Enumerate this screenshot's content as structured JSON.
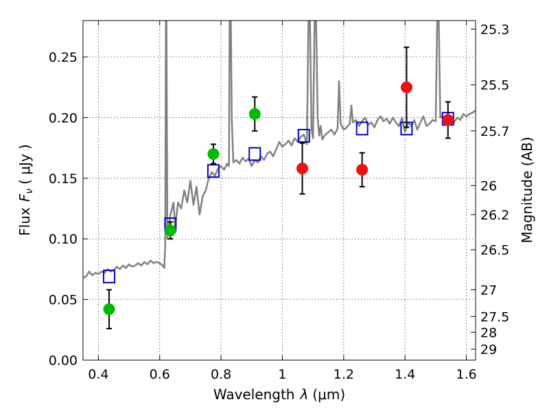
{
  "chart_data": {
    "type": "scatter",
    "xlabel": "Wavelength",
    "xlabel_symbol": "λ",
    "xlabel_unit": "(μm)",
    "ylabel": "Flux",
    "ylabel_symbol": "F",
    "ylabel_subscript": "ν",
    "ylabel_unit": "( μJy )",
    "y2label": "Magnitude (AB)",
    "xlim": [
      0.35,
      1.63
    ],
    "ylim": [
      0.0,
      0.28
    ],
    "grid": true,
    "xticks": [
      0.4,
      0.6,
      0.8,
      1.0,
      1.2,
      1.4,
      1.6
    ],
    "xtick_labels": [
      "0.4",
      "0.6",
      "0.8",
      "1",
      "1.2",
      "1.4",
      "1.6"
    ],
    "yticks": [
      0.0,
      0.05,
      0.1,
      0.15,
      0.2,
      0.25
    ],
    "ytick_labels": [
      "0.00",
      "0.05",
      "0.10",
      "0.15",
      "0.20",
      "0.25"
    ],
    "y2ticks": [
      {
        "label": "25.3",
        "flux": 0.273
      },
      {
        "label": "25.5",
        "flux": 0.227
      },
      {
        "label": "25.7",
        "flux": 0.189
      },
      {
        "label": "26",
        "flux": 0.144
      },
      {
        "label": "26.2",
        "flux": 0.12
      },
      {
        "label": "26.5",
        "flux": 0.091
      },
      {
        "label": "27",
        "flux": 0.058
      },
      {
        "label": "27.5",
        "flux": 0.036
      },
      {
        "label": "28",
        "flux": 0.023
      },
      {
        "label": "29",
        "flux": 0.009
      }
    ],
    "colors": {
      "spectrum": "#808080",
      "green_points": "#00bb00",
      "red_points": "#ee1111",
      "model_points": "#0000cc",
      "errorbar": "#000000"
    },
    "series": [
      {
        "marker": "line",
        "color": "#808080",
        "x": [
          0.35,
          0.36,
          0.37,
          0.38,
          0.39,
          0.4,
          0.41,
          0.42,
          0.43,
          0.44,
          0.45,
          0.46,
          0.47,
          0.48,
          0.49,
          0.5,
          0.51,
          0.52,
          0.53,
          0.54,
          0.55,
          0.56,
          0.57,
          0.58,
          0.59,
          0.6,
          0.61,
          0.615,
          0.618,
          0.62,
          0.622,
          0.625,
          0.63,
          0.635,
          0.64,
          0.645,
          0.65,
          0.66,
          0.67,
          0.68,
          0.69,
          0.7,
          0.71,
          0.72,
          0.73,
          0.74,
          0.75,
          0.76,
          0.77,
          0.78,
          0.79,
          0.8,
          0.81,
          0.82,
          0.826,
          0.828,
          0.832,
          0.835,
          0.84,
          0.85,
          0.86,
          0.87,
          0.88,
          0.89,
          0.9,
          0.91,
          0.92,
          0.93,
          0.94,
          0.95,
          0.96,
          0.97,
          0.98,
          0.99,
          1.0,
          1.01,
          1.02,
          1.03,
          1.04,
          1.05,
          1.06,
          1.07,
          1.08,
          1.085,
          1.09,
          1.095,
          1.1,
          1.105,
          1.11,
          1.115,
          1.12,
          1.125,
          1.13,
          1.14,
          1.15,
          1.16,
          1.17,
          1.18,
          1.185,
          1.19,
          1.2,
          1.21,
          1.22,
          1.225,
          1.23,
          1.24,
          1.25,
          1.26,
          1.27,
          1.28,
          1.29,
          1.3,
          1.31,
          1.32,
          1.33,
          1.34,
          1.35,
          1.36,
          1.37,
          1.38,
          1.39,
          1.4,
          1.41,
          1.42,
          1.43,
          1.44,
          1.45,
          1.46,
          1.47,
          1.48,
          1.49,
          1.5,
          1.505,
          1.51,
          1.515,
          1.52,
          1.53,
          1.54,
          1.55,
          1.56,
          1.57,
          1.58,
          1.59,
          1.6,
          1.61,
          1.62,
          1.63
        ],
        "y": [
          0.068,
          0.069,
          0.073,
          0.07,
          0.072,
          0.071,
          0.073,
          0.072,
          0.075,
          0.073,
          0.074,
          0.077,
          0.075,
          0.078,
          0.076,
          0.079,
          0.077,
          0.078,
          0.08,
          0.078,
          0.081,
          0.079,
          0.082,
          0.08,
          0.081,
          0.08,
          0.078,
          0.076,
          0.095,
          0.28,
          0.28,
          0.1,
          0.11,
          0.12,
          0.125,
          0.13,
          0.11,
          0.13,
          0.125,
          0.14,
          0.13,
          0.148,
          0.128,
          0.143,
          0.12,
          0.135,
          0.14,
          0.15,
          0.155,
          0.152,
          0.158,
          0.16,
          0.157,
          0.162,
          0.16,
          0.28,
          0.28,
          0.2,
          0.163,
          0.165,
          0.162,
          0.167,
          0.164,
          0.166,
          0.16,
          0.165,
          0.163,
          0.168,
          0.165,
          0.17,
          0.172,
          0.168,
          0.174,
          0.18,
          0.176,
          0.178,
          0.181,
          0.177,
          0.183,
          0.18,
          0.184,
          0.186,
          0.178,
          0.28,
          0.28,
          0.19,
          0.183,
          0.28,
          0.28,
          0.2,
          0.185,
          0.193,
          0.182,
          0.186,
          0.188,
          0.19,
          0.186,
          0.191,
          0.23,
          0.195,
          0.19,
          0.192,
          0.195,
          0.21,
          0.196,
          0.198,
          0.193,
          0.197,
          0.2,
          0.194,
          0.196,
          0.192,
          0.198,
          0.201,
          0.197,
          0.199,
          0.195,
          0.2,
          0.196,
          0.193,
          0.2,
          0.188,
          0.196,
          0.193,
          0.198,
          0.19,
          0.196,
          0.201,
          0.193,
          0.195,
          0.198,
          0.197,
          0.28,
          0.28,
          0.2,
          0.201,
          0.199,
          0.197,
          0.201,
          0.196,
          0.2,
          0.198,
          0.203,
          0.201,
          0.203,
          0.204,
          0.206
        ]
      },
      {
        "marker": "square",
        "color": "#0000cc",
        "x": [
          0.435,
          0.635,
          0.775,
          0.91,
          1.07,
          1.26,
          1.405,
          1.54
        ],
        "y": [
          0.069,
          0.112,
          0.156,
          0.17,
          0.185,
          0.191,
          0.191,
          0.199
        ]
      },
      {
        "marker": "circle",
        "color": "#00bb00",
        "x": [
          0.435,
          0.635,
          0.775,
          0.91
        ],
        "y": [
          0.042,
          0.107,
          0.17,
          0.203
        ],
        "yerr": [
          0.016,
          0.007,
          0.008,
          0.014
        ]
      },
      {
        "marker": "circle",
        "color": "#ee1111",
        "x": [
          1.065,
          1.26,
          1.405,
          1.54
        ],
        "y": [
          0.158,
          0.157,
          0.225,
          0.198
        ],
        "yerr": [
          0.021,
          0.014,
          0.033,
          0.015
        ]
      }
    ]
  }
}
